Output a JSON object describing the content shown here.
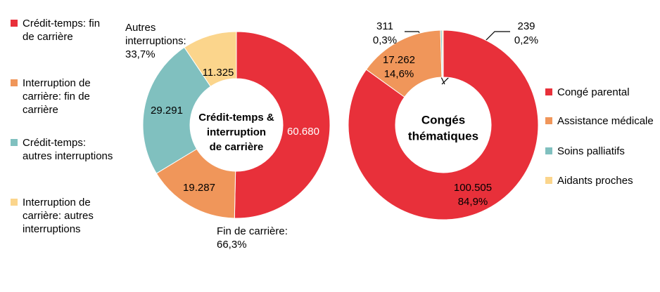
{
  "chart_data": [
    {
      "type": "donut",
      "center_label": [
        "Crédit-temps &",
        "interruption",
        "de carrière"
      ],
      "categories": [
        "Crédit-temps: fin de carrière",
        "Interruption de carrière: fin de carrière",
        "Crédit-temps: autres interruptions",
        "Interruption de carrière: autres interruptions"
      ],
      "values": [
        60680,
        19287,
        29291,
        11325
      ],
      "value_labels": [
        "60.680",
        "19.287",
        "29.291",
        "11.325"
      ],
      "colors": [
        "#e8303a",
        "#f0965a",
        "#80c0bf",
        "#fbd58c"
      ],
      "annotations": [
        "Autres interruptions: 33,7%",
        "Fin de carrière: 66,3%"
      ],
      "legend": "left"
    },
    {
      "type": "donut",
      "center_label": [
        "Congés",
        "thématiques"
      ],
      "categories": [
        "Congé parental",
        "Assistance médicale",
        "Soins palliatifs",
        "Aidants proches"
      ],
      "values": [
        100505,
        17262,
        311,
        239
      ],
      "value_labels": [
        "100.505",
        "17.262",
        "311",
        "239"
      ],
      "percent_labels": [
        "84,9%",
        "14,6%",
        "0,3%",
        "0,2%"
      ],
      "colors": [
        "#e8303a",
        "#f0965a",
        "#80c0bf",
        "#fbd58c"
      ],
      "legend": "right"
    }
  ]
}
